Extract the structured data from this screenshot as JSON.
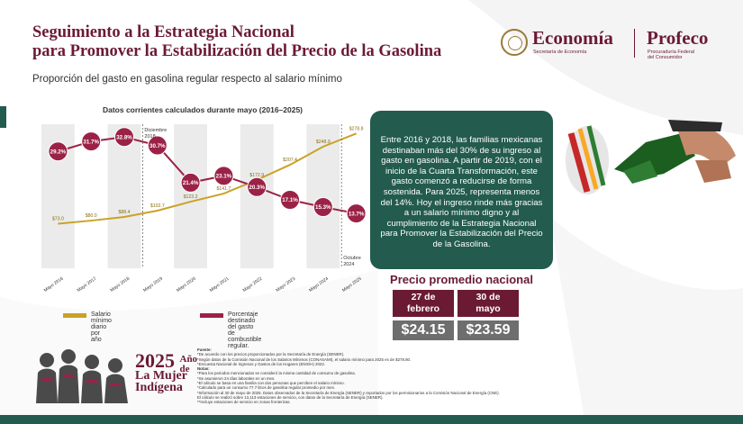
{
  "header": {
    "title_line1": "Seguimiento a la Estrategia Nacional",
    "title_line2": "para Promover la Estabilización del Precio de la Gasolina",
    "subtitle": "Proporción del gasto en gasolina regular respecto al salario mínimo"
  },
  "logos": {
    "economia": "Economía",
    "economia_sub": "Secretaría de Economía",
    "profeco": "Profeco",
    "profeco_sub1": "Procuraduría Federal",
    "profeco_sub2": "del Consumidor"
  },
  "chart_data": {
    "type": "bar+line",
    "title": "Datos corrientes calculados durante mayo (2016–2025)",
    "categories": [
      "Mayo 2016",
      "Mayo 2017",
      "Mayo 2018",
      "Mayo 2019",
      "Mayo 2020",
      "Mayo 2021",
      "Mayo 2022",
      "Mayo 2023",
      "Mayo 2024",
      "Mayo 2025"
    ],
    "series": [
      {
        "name": "Salario mínimo diario por año",
        "kind": "line",
        "color": "#c9a227",
        "values": [
          73.0,
          80.0,
          88.4,
          102.7,
          123.2,
          141.7,
          172.9,
          207.4,
          248.9,
          278.8
        ],
        "labels": [
          "$73.0",
          "$80.0",
          "$88.4",
          "$102.7",
          "$123.2",
          "$141.7",
          "$172.9",
          "$207.4",
          "$248.9",
          "$278.8"
        ]
      },
      {
        "name": "Porcentaje destinado del gasto de combustible regular.",
        "kind": "line-markers",
        "color": "#9b2247",
        "values": [
          29.2,
          31.7,
          32.8,
          30.7,
          21.4,
          23.1,
          20.3,
          17.1,
          15.3,
          13.7
        ],
        "labels": [
          "29.2%",
          "31.7%",
          "32.8%",
          "30.7%",
          "21.4%",
          "23.1%",
          "20.3%",
          "17.1%",
          "15.3%",
          "13.7%"
        ]
      }
    ],
    "annotations": [
      {
        "text": "Diciembre 2018",
        "x": "Mayo 2019",
        "position": "top"
      },
      {
        "text": "Octubre 2024",
        "x": "Mayo 2025",
        "position": "bottom"
      }
    ],
    "y_salary_range": [
      0,
      300
    ],
    "y_percent_range": [
      0,
      36
    ],
    "grid": false,
    "legend": "bottom"
  },
  "legend": {
    "salary": "Salario mínimo diario por año",
    "percent_line1": "Porcentaje destinado del gasto",
    "percent_line2": "de combustible regular."
  },
  "info_box": {
    "text": "Entre 2016 y 2018, las familias mexicanas destinaban más del 30% de su ingreso al gasto en gasolina. A partir de 2019, con el inicio de la Cuarta Transformación, este gasto comenzó a reducirse de forma sostenida. Para 2025, representa menos del 14%. Hoy el ingreso rinde más gracias a un salario mínimo digno y al cumplimiento de la Estrategia Nacional para Promover la Estabilización del Precio de la Gasolina."
  },
  "prices": {
    "title": "Precio promedio nacional",
    "col1_date_line1": "27 de",
    "col1_date_line2": "febrero",
    "col1_price": "$24.15",
    "col2_date_line1": "30 de",
    "col2_date_line2": "mayo",
    "col2_price": "$23.59"
  },
  "notes": {
    "fuente_label": "Fuente:",
    "fuente1": "*De acuerdo con los precios proporcionados por la Secretaría de Energía (SENER).",
    "fuente2": "*Según datos de la Comisión Nacional de los Salarios Mínimos (CONASAMI), el salario mínimo para 2025 es de $278.80.",
    "fuente3": "*Encuesta Nacional de Ingresos y Gastos de los Hogares (ENIGH) 2022.",
    "notas_label": "Notas:",
    "nota1": "*Para los periodos mencionados se consideró la misma cantidad de consumo de gasolina.",
    "nota2": "*Se asumieron 24 días laborales en un mes.",
    "nota3": "*El cálculo se basa en una familia con dos personas que perciben el salario mínimo.",
    "nota4": "*Calculado para un consumo 77.7 litros de gasolina regular promedio por mes.",
    "nota5": "*Información al 30 de mayo de 2025. Datos observados de la Secretaría de Energía (SENER) y reportados por los permisionarios a la Comisión Nacional de Energía (CNE).",
    "nota6": "El cálculo se realizó sobre 13,113 estaciones de servicio, con datos de la Secretaría de Energía (SENER).",
    "nota7": "**Incluye estaciones de servicio en zonas fronterizas."
  },
  "year_banner": {
    "line1": "2025",
    "line1_small": "Año de",
    "line2": "La Mujer",
    "line3": "Indígena"
  },
  "colors": {
    "guinda": "#6b1a34",
    "green": "#235b4e",
    "gold": "#c9a227",
    "marker": "#9b2247",
    "grey_band": "#ebebeb"
  }
}
